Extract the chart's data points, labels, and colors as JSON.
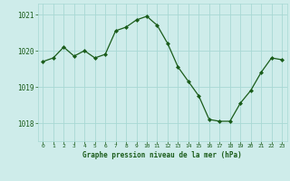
{
  "x": [
    0,
    1,
    2,
    3,
    4,
    5,
    6,
    7,
    8,
    9,
    10,
    11,
    12,
    13,
    14,
    15,
    16,
    17,
    18,
    19,
    20,
    21,
    22,
    23
  ],
  "y": [
    1019.7,
    1019.8,
    1020.1,
    1019.85,
    1020.0,
    1019.8,
    1019.9,
    1020.55,
    1020.65,
    1020.85,
    1020.95,
    1020.7,
    1020.2,
    1019.55,
    1019.15,
    1018.75,
    1018.1,
    1018.05,
    1018.05,
    1018.55,
    1018.9,
    1019.4,
    1019.8,
    1019.75
  ],
  "line_color": "#1a5c1a",
  "marker": "D",
  "marker_size": 2.0,
  "bg_color": "#ceecea",
  "grid_color": "#a8d8d4",
  "xlabel": "Graphe pression niveau de la mer (hPa)",
  "xlabel_color": "#1a5c1a",
  "tick_color": "#1a5c1a",
  "ylim": [
    1017.5,
    1021.3
  ],
  "yticks": [
    1018,
    1019,
    1020,
    1021
  ],
  "xlim": [
    -0.5,
    23.5
  ],
  "xticks": [
    0,
    1,
    2,
    3,
    4,
    5,
    6,
    7,
    8,
    9,
    10,
    11,
    12,
    13,
    14,
    15,
    16,
    17,
    18,
    19,
    20,
    21,
    22,
    23
  ]
}
